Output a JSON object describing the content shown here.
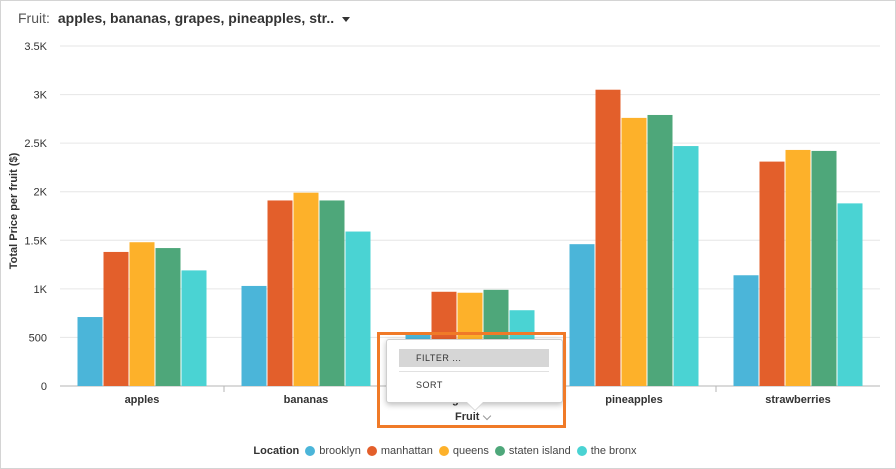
{
  "filter": {
    "label": "Fruit:",
    "value": "apples, bananas, grapes, pineapples, str..",
    "icon": "chevron-down-icon"
  },
  "menu": {
    "items": [
      "FILTER ...",
      "SORT"
    ],
    "highlighted": "FILTER ..."
  },
  "axis_menu": {
    "label": "Fruit"
  },
  "legend": {
    "title": "Location"
  },
  "colors": {
    "accent": "#f07a28"
  },
  "chart_data": {
    "type": "bar",
    "xlabel": "Fruit",
    "ylabel": "Total Price per fruit ($)",
    "ylim": [
      0,
      3500
    ],
    "yticks": [
      "0",
      "500",
      "1K",
      "1.5K",
      "2K",
      "2.5K",
      "3K",
      "3.5K"
    ],
    "ytick_values": [
      0,
      500,
      1000,
      1500,
      2000,
      2500,
      3000,
      3500
    ],
    "grid": true,
    "legend_position": "bottom",
    "categories": [
      "apples",
      "bananas",
      "grapes",
      "pineapples",
      "strawberries"
    ],
    "series": [
      {
        "name": "brooklyn",
        "color": "#4bb5d9",
        "values": [
          710,
          1030,
          530,
          1460,
          1140
        ]
      },
      {
        "name": "manhattan",
        "color": "#e35f2b",
        "values": [
          1380,
          1910,
          970,
          3050,
          2310
        ]
      },
      {
        "name": "queens",
        "color": "#fdb12a",
        "values": [
          1480,
          1990,
          960,
          2760,
          2430
        ]
      },
      {
        "name": "staten island",
        "color": "#4ea77a",
        "values": [
          1420,
          1910,
          990,
          2790,
          2420
        ]
      },
      {
        "name": "the bronx",
        "color": "#4ad3d3",
        "values": [
          1190,
          1590,
          780,
          2470,
          1880
        ]
      }
    ]
  }
}
